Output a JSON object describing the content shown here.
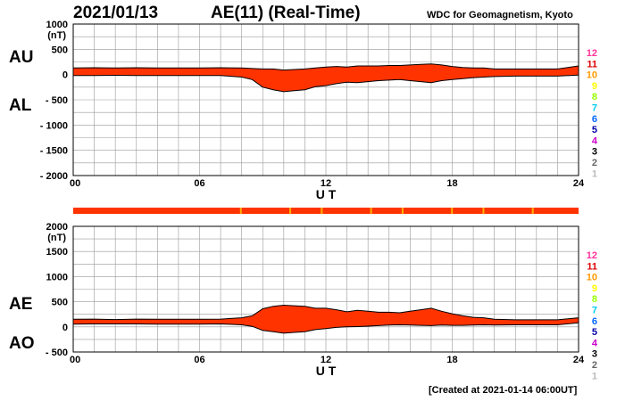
{
  "header": {
    "date": "2021/01/13",
    "title": "AE(11) (Real-Time)",
    "source": "WDC for Geomagnetism, Kyoto"
  },
  "footer": {
    "created": "[Created at 2021-01-14 06:00UT]"
  },
  "legend": {
    "entries": [
      {
        "label": "12",
        "color": "#ff3399"
      },
      {
        "label": "11",
        "color": "#dd0000"
      },
      {
        "label": "10",
        "color": "#ff9900"
      },
      {
        "label": "9",
        "color": "#ffff00"
      },
      {
        "label": "8",
        "color": "#99ff00"
      },
      {
        "label": "7",
        "color": "#00ccee"
      },
      {
        "label": "6",
        "color": "#0066ff"
      },
      {
        "label": "5",
        "color": "#0000aa"
      },
      {
        "label": "4",
        "color": "#cc00cc"
      },
      {
        "label": "3",
        "color": "#000000"
      },
      {
        "label": "2",
        "color": "#666666"
      },
      {
        "label": "1",
        "color": "#bbbbbb"
      }
    ]
  },
  "colors": {
    "fill": "#ff3300",
    "station_bar": "#ff3300",
    "highlight": "#ffb000",
    "grid": "#999999"
  },
  "chart_data": [
    {
      "type": "area",
      "name": "AU/AL",
      "upper_label": "AU",
      "lower_label": "AL",
      "unit": "(nT)",
      "xlabel": "U T",
      "xlim": [
        0,
        24
      ],
      "ylim": [
        -2000,
        1000
      ],
      "x_ticks": [
        0,
        6,
        12,
        18,
        24
      ],
      "x_tick_labels": [
        "00",
        "06",
        "12",
        "18",
        "24"
      ],
      "y_ticks": [
        1000,
        500,
        0,
        -500,
        -1000,
        -1500,
        -2000
      ],
      "y_tick_labels": [
        "1000",
        "500",
        "0",
        "- 500",
        "- 1000",
        "- 1500",
        "- 2000"
      ],
      "x": [
        0,
        1,
        2,
        3,
        4,
        5,
        6,
        7,
        8,
        8.5,
        9,
        9.5,
        10,
        10.5,
        11,
        11.5,
        12,
        12.5,
        13,
        13.5,
        14,
        14.5,
        15,
        15.5,
        16,
        16.5,
        17,
        17.5,
        18,
        18.5,
        19,
        19.5,
        20,
        21,
        22,
        23,
        24
      ],
      "au": [
        130,
        135,
        130,
        135,
        130,
        130,
        130,
        135,
        130,
        120,
        110,
        110,
        90,
        100,
        110,
        130,
        150,
        160,
        150,
        170,
        170,
        170,
        180,
        180,
        190,
        200,
        210,
        190,
        160,
        140,
        130,
        130,
        110,
        110,
        110,
        110,
        170
      ],
      "al": [
        -20,
        -20,
        -15,
        -20,
        -20,
        -20,
        -20,
        -20,
        -50,
        -100,
        -250,
        -300,
        -340,
        -320,
        -300,
        -240,
        -220,
        -180,
        -150,
        -160,
        -140,
        -120,
        -110,
        -100,
        -120,
        -140,
        -160,
        -120,
        -100,
        -80,
        -60,
        -50,
        -40,
        -30,
        -30,
        -30,
        -10
      ]
    },
    {
      "type": "area",
      "name": "AE/AO",
      "upper_label": "AE",
      "lower_label": "AO",
      "unit": "(nT)",
      "xlabel": "U T",
      "xlim": [
        0,
        24
      ],
      "ylim": [
        -500,
        2000
      ],
      "x_ticks": [
        0,
        6,
        12,
        18,
        24
      ],
      "x_tick_labels": [
        "00",
        "06",
        "12",
        "18",
        "24"
      ],
      "y_ticks": [
        2000,
        1500,
        1000,
        500,
        0,
        -500
      ],
      "y_tick_labels": [
        "2000",
        "1500",
        "1000",
        "500",
        "0",
        "- 500"
      ],
      "x": [
        0,
        1,
        2,
        3,
        4,
        5,
        6,
        7,
        8,
        8.5,
        9,
        9.5,
        10,
        10.5,
        11,
        11.5,
        12,
        12.5,
        13,
        13.5,
        14,
        14.5,
        15,
        15.5,
        16,
        16.5,
        17,
        17.5,
        18,
        18.5,
        19,
        19.5,
        20,
        21,
        22,
        23,
        24
      ],
      "ae": [
        150,
        155,
        145,
        155,
        150,
        150,
        150,
        155,
        180,
        220,
        360,
        410,
        430,
        420,
        410,
        370,
        370,
        340,
        300,
        330,
        310,
        290,
        290,
        280,
        310,
        340,
        370,
        310,
        260,
        220,
        190,
        180,
        150,
        140,
        140,
        140,
        180
      ],
      "ao": [
        55,
        58,
        58,
        58,
        55,
        55,
        55,
        58,
        40,
        10,
        -70,
        -95,
        -125,
        -110,
        -95,
        -55,
        -35,
        -10,
        0,
        5,
        15,
        25,
        35,
        40,
        35,
        30,
        25,
        35,
        30,
        30,
        35,
        40,
        35,
        40,
        40,
        40,
        80
      ]
    }
  ]
}
